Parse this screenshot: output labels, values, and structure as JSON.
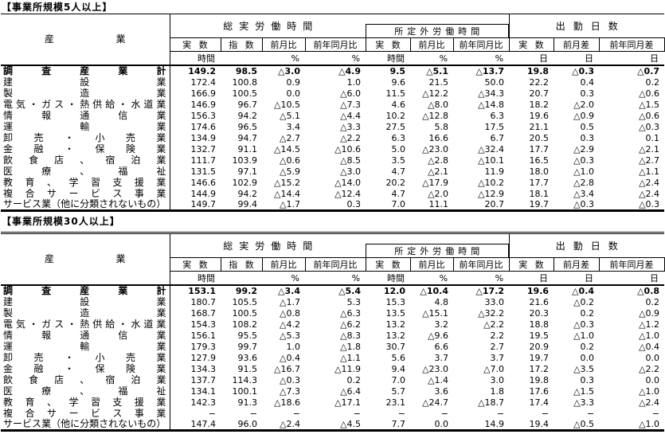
{
  "tables": [
    {
      "title": "【事業所規模5人以上】",
      "header": {
        "industry": "産業",
        "groups": [
          {
            "label": "総実労働時間"
          },
          {
            "label": "所定外労働時間"
          },
          {
            "label": "出勤日数"
          }
        ],
        "subs": [
          "実 数",
          "指 数",
          "前月比",
          "前年同月比",
          "実 数",
          "前月比",
          "前年同月比",
          "実 数",
          "前月差",
          "前年同月差"
        ],
        "units": [
          "時間",
          "",
          "%",
          "%",
          "時間",
          "%",
          "%",
          "日",
          "日",
          "日"
        ]
      },
      "rows": [
        {
          "industry": "調査産業計",
          "bold": true,
          "values": [
            "149.2",
            "98.5",
            "△3.0",
            "△4.9",
            "9.5",
            "△5.1",
            "△13.7",
            "19.8",
            "△0.3",
            "△0.7"
          ]
        },
        {
          "industry": "建設業",
          "values": [
            "172.4",
            "100.8",
            "0.9",
            "1.0",
            "9.6",
            "21.5",
            "50.0",
            "22.2",
            "0.4",
            "0.2"
          ]
        },
        {
          "industry": "製造業",
          "values": [
            "166.9",
            "100.5",
            "0.0",
            "△6.0",
            "11.5",
            "△12.2",
            "△34.3",
            "20.7",
            "0.3",
            "△0.6"
          ]
        },
        {
          "industry": "電気・ガス・熱供給・水道業",
          "values": [
            "146.9",
            "96.7",
            "△10.5",
            "△7.3",
            "4.6",
            "△8.0",
            "△14.8",
            "18.2",
            "△2.0",
            "△1.5"
          ]
        },
        {
          "industry": "情報通信業",
          "values": [
            "156.3",
            "94.2",
            "△5.1",
            "△4.4",
            "10.2",
            "△12.8",
            "6.3",
            "19.6",
            "△0.9",
            "△0.6"
          ]
        },
        {
          "industry": "運輸業",
          "values": [
            "174.6",
            "96.5",
            "3.4",
            "△3.3",
            "27.5",
            "5.8",
            "17.5",
            "21.1",
            "0.5",
            "△0.3"
          ]
        },
        {
          "industry": "卸売・小売業",
          "values": [
            "134.9",
            "94.7",
            "△2.7",
            "△2.2",
            "6.3",
            "16.6",
            "6.7",
            "20.5",
            "0.3",
            "0.1"
          ]
        },
        {
          "industry": "金融・保険業",
          "values": [
            "132.7",
            "91.1",
            "△14.5",
            "△10.6",
            "5.0",
            "△23.0",
            "△32.4",
            "17.7",
            "△2.9",
            "△2.1"
          ]
        },
        {
          "industry": "飲食店、宿泊業",
          "values": [
            "111.7",
            "103.9",
            "△0.6",
            "△8.5",
            "3.5",
            "△2.8",
            "△10.1",
            "16.5",
            "△0.3",
            "△2.7"
          ]
        },
        {
          "industry": "医療、福祉",
          "values": [
            "131.5",
            "97.1",
            "△5.9",
            "△3.0",
            "4.7",
            "△2.1",
            "11.9",
            "18.0",
            "△1.0",
            "△1.1"
          ]
        },
        {
          "industry": "教育、学習支援業",
          "values": [
            "146.6",
            "102.9",
            "△15.2",
            "△14.0",
            "20.2",
            "△17.9",
            "△10.2",
            "17.7",
            "△2.8",
            "△2.4"
          ]
        },
        {
          "industry": "複合サービス事業",
          "values": [
            "144.9",
            "94.2",
            "△14.4",
            "△12.4",
            "4.7",
            "△2.0",
            "△12.9",
            "18.1",
            "△3.4",
            "△2.4"
          ]
        },
        {
          "industry": "サービス業（他に分類されないもの）",
          "values": [
            "149.7",
            "99.4",
            "△1.7",
            "0.3",
            "7.0",
            "11.1",
            "20.7",
            "19.7",
            "△0.3",
            "△0.3"
          ]
        }
      ]
    },
    {
      "title": "【事業所規模30人以上】",
      "header": {
        "industry": "産業",
        "groups": [
          {
            "label": "総実労働時間"
          },
          {
            "label": "所定外労働時間"
          },
          {
            "label": "出勤日数"
          }
        ],
        "subs": [
          "実 数",
          "指 数",
          "前月比",
          "前年同月比",
          "実 数",
          "前月比",
          "前年同月比",
          "実 数",
          "前月差",
          "前年同月差"
        ],
        "units": [
          "時間",
          "",
          "%",
          "%",
          "時間",
          "%",
          "%",
          "日",
          "日",
          "日"
        ]
      },
      "rows": [
        {
          "industry": "調査産業計",
          "bold": true,
          "values": [
            "153.1",
            "99.2",
            "△3.4",
            "△5.4",
            "12.0",
            "△10.4",
            "△17.2",
            "19.6",
            "△0.4",
            "△0.8"
          ]
        },
        {
          "industry": "建設業",
          "values": [
            "180.7",
            "105.5",
            "△1.7",
            "5.3",
            "15.3",
            "4.8",
            "33.0",
            "21.6",
            "△0.2",
            "0.2"
          ]
        },
        {
          "industry": "製造業",
          "values": [
            "168.7",
            "100.5",
            "△0.8",
            "△6.3",
            "13.5",
            "△15.1",
            "△32.2",
            "20.3",
            "0.2",
            "△0.9"
          ]
        },
        {
          "industry": "電気・ガス・熱供給・水道業",
          "values": [
            "154.3",
            "108.2",
            "△4.2",
            "△6.2",
            "13.2",
            "3.2",
            "△2.2",
            "18.8",
            "△0.3",
            "△1.2"
          ]
        },
        {
          "industry": "情報通信業",
          "values": [
            "156.1",
            "95.5",
            "△5.3",
            "△8.3",
            "13.2",
            "△9.6",
            "2.2",
            "19.5",
            "△1.0",
            "△1.0"
          ]
        },
        {
          "industry": "運輸業",
          "values": [
            "179.3",
            "99.7",
            "1.0",
            "△1.8",
            "30.7",
            "6.6",
            "2.7",
            "20.9",
            "0.2",
            "△0.4"
          ]
        },
        {
          "industry": "卸売・小売業",
          "values": [
            "127.9",
            "93.6",
            "△0.4",
            "△1.1",
            "5.6",
            "3.7",
            "3.7",
            "19.7",
            "0.0",
            "0.0"
          ]
        },
        {
          "industry": "金融・保険業",
          "values": [
            "134.3",
            "91.5",
            "△16.7",
            "△11.9",
            "9.4",
            "△23.0",
            "△7.0",
            "17.2",
            "△3.5",
            "△2.2"
          ]
        },
        {
          "industry": "飲食店、宿泊業",
          "values": [
            "137.7",
            "114.3",
            "△0.3",
            "0.2",
            "7.0",
            "△1.4",
            "3.0",
            "19.8",
            "0.3",
            "0.0"
          ]
        },
        {
          "industry": "医療、福祉",
          "values": [
            "134.1",
            "100.1",
            "△7.3",
            "△6.4",
            "5.7",
            "3.6",
            "1.8",
            "17.6",
            "△1.5",
            "△1.0"
          ]
        },
        {
          "industry": "教育、学習支援業",
          "values": [
            "142.3",
            "91.3",
            "△18.6",
            "△17.1",
            "23.1",
            "△24.7",
            "△18.7",
            "17.4",
            "△3.3",
            "△2.4"
          ]
        },
        {
          "industry": "複合サービス事業",
          "values": [
            "−",
            "−",
            "−",
            "−",
            "−",
            "−",
            "−",
            "−",
            "−",
            "−"
          ]
        },
        {
          "industry": "サービス業（他に分類されないもの）",
          "values": [
            "147.4",
            "96.0",
            "△2.4",
            "△4.5",
            "7.7",
            "0.0",
            "14.9",
            "19.4",
            "△0.5",
            "△1.0"
          ]
        }
      ]
    }
  ]
}
